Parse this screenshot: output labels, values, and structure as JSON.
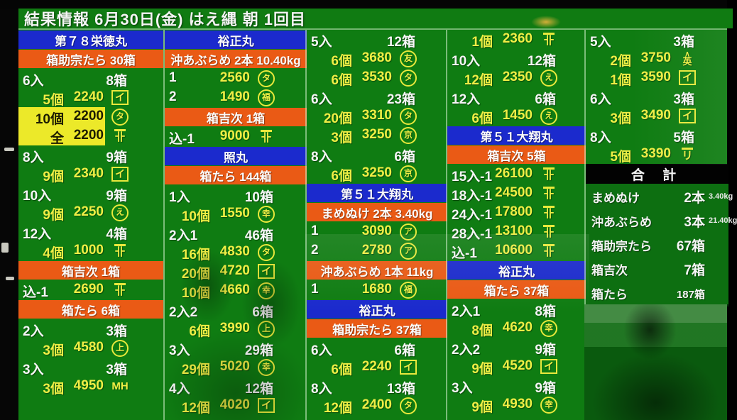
{
  "header": {
    "title": "結果情報  6月30日(金)  はえ縄  朝  1回目"
  },
  "colors": {
    "board_green": "#0f7c12",
    "boat_header_blue": "#1b2acd",
    "fish_header_orange": "#ea5a15",
    "price_yellow": "#efee45",
    "highlight_yellow": "#ece929",
    "text_white": "#f6f6f6",
    "summary_black": "#020202"
  },
  "columns": [
    {
      "rows": [
        {
          "kind": "boat",
          "label": "第７８栄徳丸"
        },
        {
          "kind": "fish",
          "label": "箱助宗たら 30箱"
        },
        {
          "kind": "size",
          "label": "6入",
          "count": "8箱"
        },
        {
          "kind": "sale",
          "label": "5個",
          "price": "2240",
          "mark": {
            "char": "イ",
            "style": "box"
          }
        },
        {
          "kind": "sale",
          "label": "10個",
          "price": "2200",
          "highlight": true,
          "mark": {
            "char": "タ",
            "style": "circle"
          }
        },
        {
          "kind": "sale",
          "label": "全",
          "price": "2200",
          "highlight": true,
          "mark": {
            "char": "卝",
            "style": "overline"
          }
        },
        {
          "kind": "size",
          "label": "8入",
          "count": "9箱"
        },
        {
          "kind": "sale",
          "label": "9個",
          "price": "2340",
          "mark": {
            "char": "イ",
            "style": "box"
          }
        },
        {
          "kind": "size",
          "label": "10入",
          "count": "9箱"
        },
        {
          "kind": "sale",
          "label": "9個",
          "price": "2250",
          "mark": {
            "char": "え",
            "style": "circle"
          }
        },
        {
          "kind": "size",
          "label": "12入",
          "count": "4箱"
        },
        {
          "kind": "sale",
          "label": "4個",
          "price": "1000",
          "mark": {
            "char": "卝",
            "style": "overline"
          }
        },
        {
          "kind": "fish",
          "label": "箱吉次 1箱"
        },
        {
          "kind": "lot",
          "label": "込-1",
          "price": "2690",
          "mark": {
            "char": "卝",
            "style": "overline"
          }
        },
        {
          "kind": "fish",
          "label": "箱たら 6箱"
        },
        {
          "kind": "size",
          "label": "2入",
          "count": "3箱"
        },
        {
          "kind": "sale",
          "label": "3個",
          "price": "4580",
          "mark": {
            "char": "上",
            "style": "circle"
          }
        },
        {
          "kind": "size",
          "label": "3入",
          "count": "3箱"
        },
        {
          "kind": "sale",
          "label": "3個",
          "price": "4950",
          "mark": {
            "char": "MH",
            "style": "plain"
          }
        }
      ]
    },
    {
      "rows": [
        {
          "kind": "boat",
          "label": "裕正丸"
        },
        {
          "kind": "fish",
          "label": "沖あぶらめ 2本 10.40kg"
        },
        {
          "kind": "lot",
          "label": "1",
          "price": "2560",
          "mark": {
            "char": "タ",
            "style": "circle"
          }
        },
        {
          "kind": "lot",
          "label": "2",
          "price": "1490",
          "mark": {
            "char": "福",
            "style": "circle"
          }
        },
        {
          "kind": "fish",
          "label": "箱吉次 1箱"
        },
        {
          "kind": "lot",
          "label": "込-1",
          "price": "9000",
          "mark": {
            "char": "卝",
            "style": "overline"
          }
        },
        {
          "kind": "boat",
          "label": "照丸"
        },
        {
          "kind": "fish",
          "label": "箱たら 144箱"
        },
        {
          "kind": "size",
          "label": "1入",
          "count": "10箱"
        },
        {
          "kind": "sale",
          "label": "10個",
          "price": "1550",
          "mark": {
            "char": "幸",
            "style": "circle"
          }
        },
        {
          "kind": "size",
          "label": "2入1",
          "count": "46箱"
        },
        {
          "kind": "sale",
          "label": "16個",
          "price": "4830",
          "mark": {
            "char": "タ",
            "style": "circle"
          }
        },
        {
          "kind": "sale",
          "label": "20個",
          "price": "4720",
          "mark": {
            "char": "イ",
            "style": "box"
          }
        },
        {
          "kind": "sale",
          "label": "10個",
          "price": "4660",
          "mark": {
            "char": "幸",
            "style": "circle"
          }
        },
        {
          "kind": "size",
          "label": "2入2",
          "count": "6箱"
        },
        {
          "kind": "sale",
          "label": "6個",
          "price": "3990",
          "mark": {
            "char": "上",
            "style": "circle"
          }
        },
        {
          "kind": "size",
          "label": "3入",
          "count": "29箱"
        },
        {
          "kind": "sale",
          "label": "29個",
          "price": "5020",
          "mark": {
            "char": "幸",
            "style": "circle"
          }
        },
        {
          "kind": "size",
          "label": "4入",
          "count": "12箱"
        },
        {
          "kind": "sale",
          "label": "12個",
          "price": "4020",
          "mark": {
            "char": "イ",
            "style": "box"
          }
        }
      ]
    },
    {
      "rows": [
        {
          "kind": "size",
          "label": "5入",
          "count": "12箱"
        },
        {
          "kind": "sale",
          "label": "6個",
          "price": "3680",
          "mark": {
            "char": "友",
            "style": "circle"
          }
        },
        {
          "kind": "sale",
          "label": "6個",
          "price": "3530",
          "mark": {
            "char": "タ",
            "style": "circle"
          }
        },
        {
          "kind": "size",
          "label": "6入",
          "count": "23箱"
        },
        {
          "kind": "sale",
          "label": "20個",
          "price": "3310",
          "mark": {
            "char": "タ",
            "style": "circle"
          }
        },
        {
          "kind": "sale",
          "label": "3個",
          "price": "3250",
          "mark": {
            "char": "京",
            "style": "circle"
          }
        },
        {
          "kind": "size",
          "label": "8入",
          "count": "6箱"
        },
        {
          "kind": "sale",
          "label": "6個",
          "price": "3250",
          "mark": {
            "char": "京",
            "style": "circle"
          }
        },
        {
          "kind": "boat",
          "label": "第５１大翔丸"
        },
        {
          "kind": "fish",
          "label": "まめぬけ 2本 3.40kg"
        },
        {
          "kind": "lot",
          "label": "1",
          "price": "3090",
          "mark": {
            "char": "ア",
            "style": "circle"
          }
        },
        {
          "kind": "lot",
          "label": "2",
          "price": "2780",
          "mark": {
            "char": "ア",
            "style": "circle"
          }
        },
        {
          "kind": "fish",
          "label": "沖あぶらめ 1本 11kg"
        },
        {
          "kind": "lot",
          "label": "1",
          "price": "1680",
          "mark": {
            "char": "福",
            "style": "circle"
          }
        },
        {
          "kind": "boat",
          "label": "裕正丸"
        },
        {
          "kind": "fish",
          "label": "箱助宗たら 37箱"
        },
        {
          "kind": "size",
          "label": "6入",
          "count": "6箱"
        },
        {
          "kind": "sale",
          "label": "6個",
          "price": "2240",
          "mark": {
            "char": "イ",
            "style": "box"
          }
        },
        {
          "kind": "size",
          "label": "8入",
          "count": "13箱"
        },
        {
          "kind": "sale",
          "label": "12個",
          "price": "2400",
          "mark": {
            "char": "タ",
            "style": "circle"
          }
        }
      ]
    },
    {
      "rows": [
        {
          "kind": "sale",
          "label": "1個",
          "price": "2360",
          "mark": {
            "char": "卝",
            "style": "overline"
          }
        },
        {
          "kind": "size",
          "label": "10入",
          "count": "12箱"
        },
        {
          "kind": "sale",
          "label": "12個",
          "price": "2350",
          "mark": {
            "char": "え",
            "style": "circle"
          }
        },
        {
          "kind": "size",
          "label": "12入",
          "count": "6箱"
        },
        {
          "kind": "sale",
          "label": "6個",
          "price": "1450",
          "mark": {
            "char": "え",
            "style": "circle"
          }
        },
        {
          "kind": "boat",
          "label": "第５１大翔丸"
        },
        {
          "kind": "fish",
          "label": "箱吉次 5箱"
        },
        {
          "kind": "lot",
          "label": "15入-1",
          "price": "26100",
          "mark": {
            "char": "卝",
            "style": "overline"
          }
        },
        {
          "kind": "lot",
          "label": "18入-1",
          "price": "24500",
          "mark": {
            "char": "卝",
            "style": "overline"
          }
        },
        {
          "kind": "lot",
          "label": "24入-1",
          "price": "17800",
          "mark": {
            "char": "卝",
            "style": "overline"
          }
        },
        {
          "kind": "lot",
          "label": "28入-1",
          "price": "13100",
          "mark": {
            "char": "卝",
            "style": "overline"
          }
        },
        {
          "kind": "lot",
          "label": "込-1",
          "price": "10600",
          "mark": {
            "char": "卝",
            "style": "overline"
          }
        },
        {
          "kind": "boat",
          "label": "裕正丸"
        },
        {
          "kind": "fish",
          "label": "箱たら 37箱"
        },
        {
          "kind": "size",
          "label": "2入1",
          "count": "8箱"
        },
        {
          "kind": "sale",
          "label": "8個",
          "price": "4620",
          "mark": {
            "char": "幸",
            "style": "circle"
          }
        },
        {
          "kind": "size",
          "label": "2入2",
          "count": "9箱"
        },
        {
          "kind": "sale",
          "label": "9個",
          "price": "4520",
          "mark": {
            "char": "イ",
            "style": "box"
          }
        },
        {
          "kind": "size",
          "label": "3入",
          "count": "9箱"
        },
        {
          "kind": "sale",
          "label": "9個",
          "price": "4930",
          "mark": {
            "char": "幸",
            "style": "circle"
          }
        }
      ]
    },
    {
      "rows": [
        {
          "kind": "size",
          "label": "5入",
          "count": "3箱"
        },
        {
          "kind": "sale",
          "label": "2個",
          "price": "3750",
          "mark": {
            "char": "英",
            "style": "roof",
            "top": "∧"
          }
        },
        {
          "kind": "sale",
          "label": "1個",
          "price": "3590",
          "mark": {
            "char": "イ",
            "style": "box"
          }
        },
        {
          "kind": "size",
          "label": "6入",
          "count": "3箱"
        },
        {
          "kind": "sale",
          "label": "3個",
          "price": "3490",
          "mark": {
            "char": "イ",
            "style": "box"
          }
        },
        {
          "kind": "size",
          "label": "8入",
          "count": "5箱"
        },
        {
          "kind": "sale",
          "label": "5個",
          "price": "3390",
          "mark": {
            "char": "リ",
            "style": "overline"
          }
        }
      ]
    }
  ],
  "summary": {
    "title": "合 計",
    "rows": [
      {
        "label": "まめぬけ",
        "value": "2本",
        "extra": "3.40kg"
      },
      {
        "label": "沖あぶらめ",
        "value": "3本",
        "extra": "21.40kg"
      },
      {
        "label": "箱助宗たら",
        "value": "67箱",
        "extra": ""
      },
      {
        "label": "箱吉次",
        "value": "7箱",
        "extra": ""
      },
      {
        "label": "箱たら",
        "value": "187箱",
        "extra": ""
      }
    ]
  }
}
